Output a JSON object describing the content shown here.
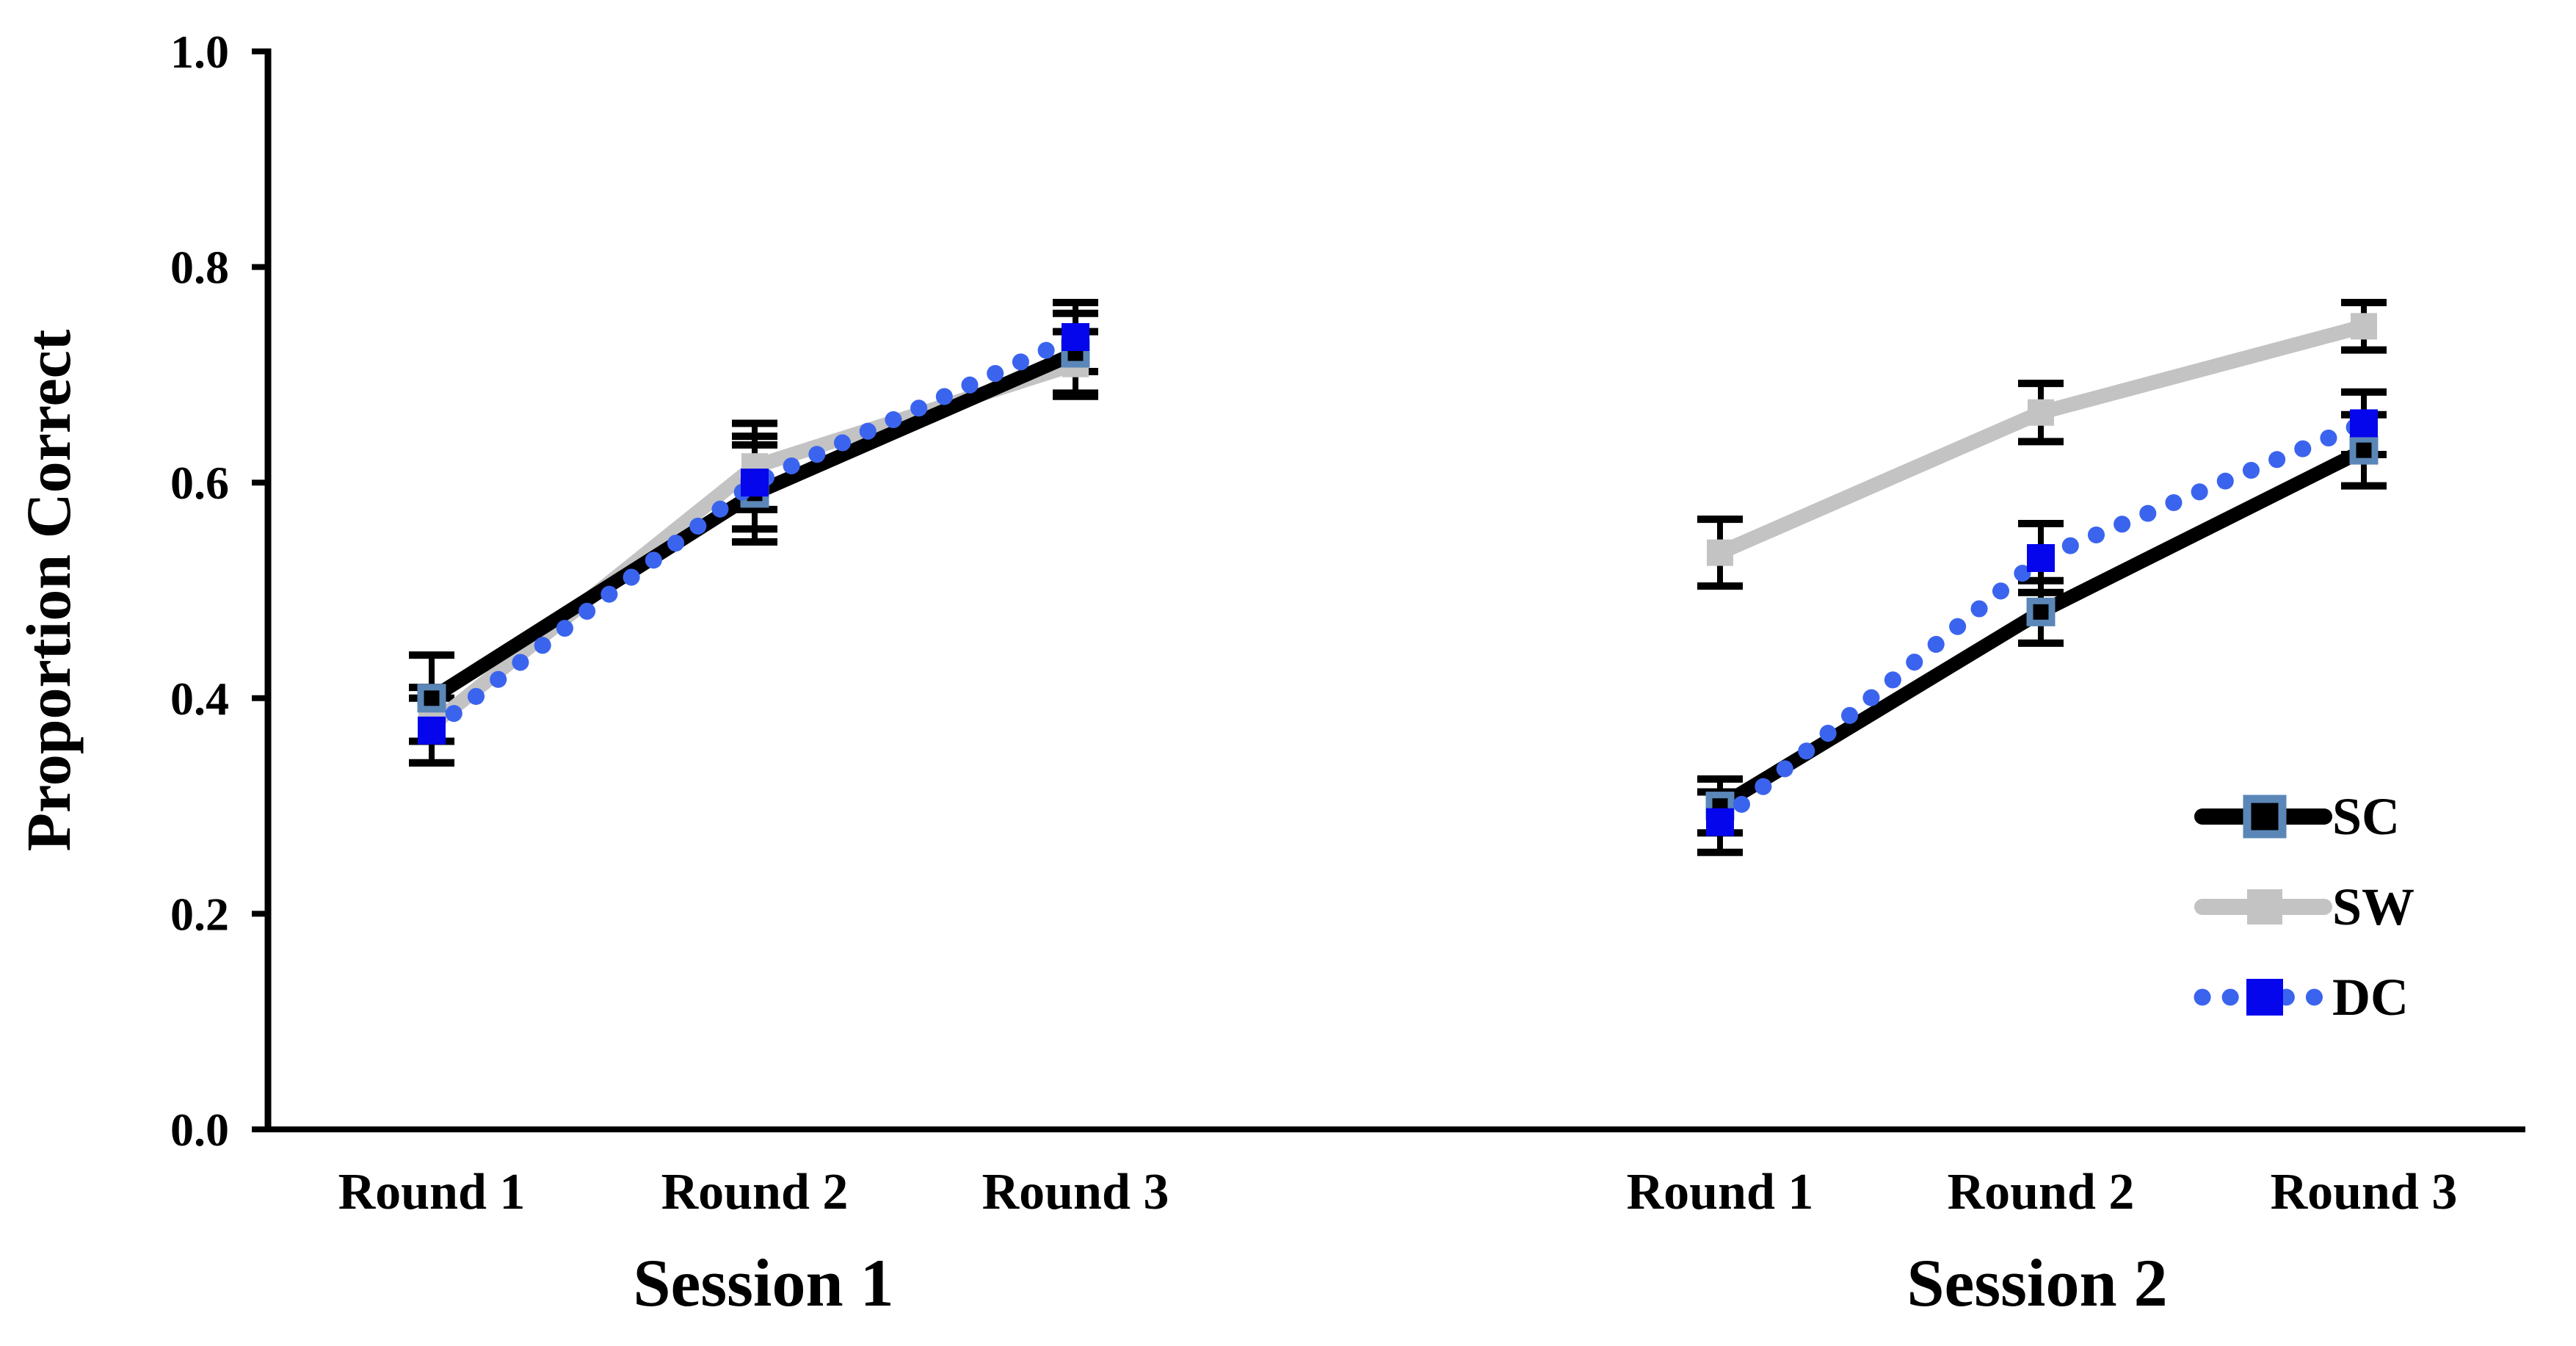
{
  "chart_data": {
    "type": "line",
    "title": "",
    "ylabel": "Proportion Correct",
    "xlabel": "",
    "ylim": [
      0.0,
      1.0
    ],
    "yticks": [
      "0.0",
      "0.2",
      "0.4",
      "0.6",
      "0.8",
      "1.0"
    ],
    "ytick_values": [
      0.0,
      0.2,
      0.4,
      0.6,
      0.8,
      1.0
    ],
    "grid": false,
    "legend_position": "lower-right",
    "error_bar_color": "#000000",
    "sessions": [
      {
        "label": "Session 1",
        "rounds": [
          "Round 1",
          "Round 2",
          "Round 3"
        ]
      },
      {
        "label": "Session 2",
        "rounds": [
          "Round 1",
          "Round 2",
          "Round 3"
        ]
      }
    ],
    "series": [
      {
        "name": "SC",
        "line_style": "solid",
        "color": "#000000",
        "marker": "square-open",
        "marker_border": "#5b87b8",
        "marker_fill": "#000000",
        "session1": {
          "values": [
            0.4,
            0.59,
            0.72
          ],
          "errors": [
            0.04,
            0.045,
            0.037
          ]
        },
        "session2": {
          "values": [
            0.3,
            0.48,
            0.63
          ],
          "errors": [
            0.025,
            0.029,
            0.033
          ]
        }
      },
      {
        "name": "SW",
        "line_style": "solid",
        "color": "#c3c3c3",
        "marker": "square",
        "marker_border": "#c3c3c3",
        "marker_fill": "#c3c3c3",
        "session1": {
          "values": [
            0.375,
            0.615,
            0.71
          ],
          "errors": [
            0.035,
            0.04,
            0.03
          ]
        },
        "session2": {
          "values": [
            0.535,
            0.665,
            0.745
          ],
          "errors": [
            0.031,
            0.027,
            0.022
          ]
        }
      },
      {
        "name": "DC",
        "line_style": "dotted",
        "color": "#3b64ee",
        "marker": "square",
        "marker_border": "#0606ec",
        "marker_fill": "#0606ec",
        "session1": {
          "values": [
            0.37,
            0.6,
            0.735
          ],
          "errors": [
            0.03,
            0.043,
            0.032
          ]
        },
        "session2": {
          "values": [
            0.285,
            0.53,
            0.655
          ],
          "errors": [
            0.028,
            0.032,
            0.029
          ]
        }
      }
    ]
  }
}
